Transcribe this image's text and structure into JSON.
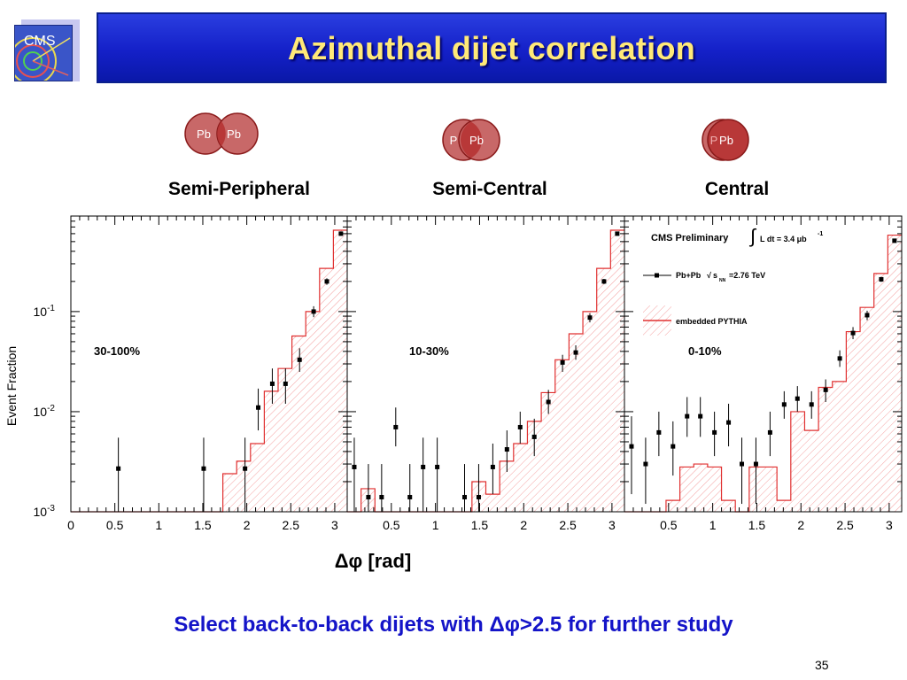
{
  "slide": {
    "title": "Azimuthal dijet correlation",
    "logo_text": "CMS",
    "footer_text": "Select back-to-back dijets with Δφ>2.5 for further study",
    "page_number": "35"
  },
  "collisions": [
    {
      "label": "Semi-Peripheral",
      "nuclei": [
        "Pb",
        "Pb"
      ],
      "overlap": "small"
    },
    {
      "label": "Semi-Central",
      "nuclei": [
        "P",
        "Pb"
      ],
      "overlap": "large"
    },
    {
      "label": "Central",
      "nuclei": [
        "P",
        "Pb"
      ],
      "overlap": "full"
    }
  ],
  "chart_data": {
    "type": "line",
    "ylabel": "Event Fraction",
    "xlabel": "Δφ [rad]",
    "yscale": "log",
    "ylim": [
      0.001,
      0.9
    ],
    "xlim": [
      0,
      3.1416
    ],
    "y_tick_labels": [
      {
        "base": "10",
        "exp": "-3"
      },
      {
        "base": "10",
        "exp": "-2"
      },
      {
        "base": "10",
        "exp": "-1"
      }
    ],
    "x_tick_labels_first": [
      "0",
      "0.5",
      "1",
      "1.5",
      "2",
      "2.5",
      "3"
    ],
    "x_tick_labels_other": [
      "0.5",
      "1",
      "1.5",
      "2",
      "2.5",
      "3"
    ],
    "legend": {
      "header": "CMS Preliminary",
      "lumi": "L dt = 3.4 μb",
      "lumi_exp": "-1",
      "data_label": "Pb+Pb",
      "energy_label": "s",
      "energy_sub": "NN",
      "energy_value": "=2.76 TeV",
      "mc_label": "embedded PYTHIA",
      "integral": "∫",
      "sqrt": "√"
    },
    "bin_edges": [
      0,
      0.1571,
      0.3142,
      0.4712,
      0.6283,
      0.7854,
      0.9425,
      1.0996,
      1.2566,
      1.4137,
      1.5708,
      1.7279,
      1.885,
      2.042,
      2.1991,
      2.3562,
      2.5133,
      2.6704,
      2.8274,
      2.9845,
      3.1416
    ],
    "panels": [
      {
        "label": "30-100%",
        "series": [
          {
            "name": "Pb+Pb",
            "points": [
              {
                "x": 0.54,
                "y": 0.0027,
                "lo": 0.001,
                "hi": 0.0055
              },
              {
                "x": 1.51,
                "y": 0.0027,
                "lo": 0.001,
                "hi": 0.0055
              },
              {
                "x": 1.98,
                "y": 0.0027,
                "lo": 0.001,
                "hi": 0.0055
              },
              {
                "x": 2.13,
                "y": 0.011,
                "lo": 0.0065,
                "hi": 0.017
              },
              {
                "x": 2.29,
                "y": 0.019,
                "lo": 0.012,
                "hi": 0.027
              },
              {
                "x": 2.44,
                "y": 0.019,
                "lo": 0.012,
                "hi": 0.027
              },
              {
                "x": 2.6,
                "y": 0.033,
                "lo": 0.025,
                "hi": 0.043
              },
              {
                "x": 2.76,
                "y": 0.1,
                "lo": 0.088,
                "hi": 0.113
              },
              {
                "x": 2.91,
                "y": 0.2,
                "lo": 0.185,
                "hi": 0.215
              },
              {
                "x": 3.07,
                "y": 0.6,
                "lo": 0.585,
                "hi": 0.615
              }
            ]
          },
          {
            "name": "embedded PYTHIA",
            "values": [
              0,
              0,
              0,
              0,
              0,
              0,
              0,
              0,
              0,
              0,
              0,
              0.0024,
              0.0032,
              0.0048,
              0.016,
              0.027,
              0.057,
              0.1,
              0.27,
              0.65
            ]
          }
        ]
      },
      {
        "label": "10-30%",
        "series": [
          {
            "name": "Pb+Pb",
            "points": [
              {
                "x": 0.08,
                "y": 0.0028,
                "lo": 0.001,
                "hi": 0.0055
              },
              {
                "x": 0.24,
                "y": 0.0014,
                "lo": 0.001,
                "hi": 0.003
              },
              {
                "x": 0.39,
                "y": 0.0014,
                "lo": 0.001,
                "hi": 0.003
              },
              {
                "x": 0.55,
                "y": 0.007,
                "lo": 0.0045,
                "hi": 0.011
              },
              {
                "x": 0.71,
                "y": 0.0014,
                "lo": 0.001,
                "hi": 0.003
              },
              {
                "x": 0.86,
                "y": 0.0028,
                "lo": 0.001,
                "hi": 0.0055
              },
              {
                "x": 1.02,
                "y": 0.0028,
                "lo": 0.001,
                "hi": 0.0055
              },
              {
                "x": 1.33,
                "y": 0.0014,
                "lo": 0.001,
                "hi": 0.003
              },
              {
                "x": 1.49,
                "y": 0.0014,
                "lo": 0.001,
                "hi": 0.003
              },
              {
                "x": 1.65,
                "y": 0.0028,
                "lo": 0.0015,
                "hi": 0.0048
              },
              {
                "x": 1.81,
                "y": 0.0042,
                "lo": 0.0025,
                "hi": 0.0065
              },
              {
                "x": 1.96,
                "y": 0.007,
                "lo": 0.0048,
                "hi": 0.01
              },
              {
                "x": 2.12,
                "y": 0.0056,
                "lo": 0.0036,
                "hi": 0.0085
              },
              {
                "x": 2.28,
                "y": 0.0125,
                "lo": 0.0095,
                "hi": 0.0165
              },
              {
                "x": 2.44,
                "y": 0.031,
                "lo": 0.025,
                "hi": 0.037
              },
              {
                "x": 2.59,
                "y": 0.039,
                "lo": 0.033,
                "hi": 0.046
              },
              {
                "x": 2.75,
                "y": 0.087,
                "lo": 0.078,
                "hi": 0.096
              },
              {
                "x": 2.91,
                "y": 0.2,
                "lo": 0.188,
                "hi": 0.212
              },
              {
                "x": 3.06,
                "y": 0.6,
                "lo": 0.59,
                "hi": 0.61
              }
            ]
          },
          {
            "name": "embedded PYTHIA",
            "values": [
              0,
              0.0017,
              0,
              0,
              0,
              0,
              0,
              0,
              0,
              0.002,
              0.0015,
              0.0032,
              0.0048,
              0.008,
              0.0155,
              0.033,
              0.06,
              0.1,
              0.27,
              0.65
            ]
          }
        ]
      },
      {
        "label": "0-10%",
        "series": [
          {
            "name": "Pb+Pb",
            "points": [
              {
                "x": 0.08,
                "y": 0.0045,
                "lo": 0.0015,
                "hi": 0.009
              },
              {
                "x": 0.24,
                "y": 0.003,
                "lo": 0.0012,
                "hi": 0.0055
              },
              {
                "x": 0.39,
                "y": 0.0062,
                "lo": 0.0036,
                "hi": 0.01
              },
              {
                "x": 0.55,
                "y": 0.0045,
                "lo": 0.0023,
                "hi": 0.008
              },
              {
                "x": 0.71,
                "y": 0.009,
                "lo": 0.0056,
                "hi": 0.014
              },
              {
                "x": 0.86,
                "y": 0.009,
                "lo": 0.0056,
                "hi": 0.014
              },
              {
                "x": 1.02,
                "y": 0.0062,
                "lo": 0.0036,
                "hi": 0.01
              },
              {
                "x": 1.18,
                "y": 0.0078,
                "lo": 0.0045,
                "hi": 0.012
              },
              {
                "x": 1.33,
                "y": 0.003,
                "lo": 0.0012,
                "hi": 0.0055
              },
              {
                "x": 1.49,
                "y": 0.003,
                "lo": 0.0012,
                "hi": 0.0055
              },
              {
                "x": 1.65,
                "y": 0.0062,
                "lo": 0.0036,
                "hi": 0.01
              },
              {
                "x": 1.81,
                "y": 0.0118,
                "lo": 0.0085,
                "hi": 0.016
              },
              {
                "x": 1.96,
                "y": 0.0135,
                "lo": 0.01,
                "hi": 0.018
              },
              {
                "x": 2.12,
                "y": 0.0118,
                "lo": 0.0085,
                "hi": 0.016
              },
              {
                "x": 2.28,
                "y": 0.0165,
                "lo": 0.0125,
                "hi": 0.021
              },
              {
                "x": 2.44,
                "y": 0.034,
                "lo": 0.028,
                "hi": 0.041
              },
              {
                "x": 2.59,
                "y": 0.061,
                "lo": 0.053,
                "hi": 0.07
              },
              {
                "x": 2.75,
                "y": 0.092,
                "lo": 0.082,
                "hi": 0.102
              },
              {
                "x": 2.91,
                "y": 0.21,
                "lo": 0.198,
                "hi": 0.222
              },
              {
                "x": 3.06,
                "y": 0.51,
                "lo": 0.498,
                "hi": 0.522
              }
            ]
          },
          {
            "name": "embedded PYTHIA",
            "values": [
              0,
              0,
              0,
              0.0013,
              0.0028,
              0.003,
              0.0028,
              0.0013,
              0,
              0.0028,
              0.0028,
              0.0013,
              0.01,
              0.0065,
              0.0175,
              0.02,
              0.063,
              0.11,
              0.24,
              0.58
            ]
          }
        ]
      }
    ],
    "colors": {
      "mc_line": "#e03030",
      "mc_hatch": "#f4a0a0",
      "data_marker": "#000000",
      "title_text": "#ffe978",
      "title_bar": "#1a2ad0",
      "footer_text": "#1414c8",
      "nucleus_fill": "#c86868",
      "nucleus_overlap": "#b83838",
      "nucleus_border": "#8a1a1a"
    }
  }
}
